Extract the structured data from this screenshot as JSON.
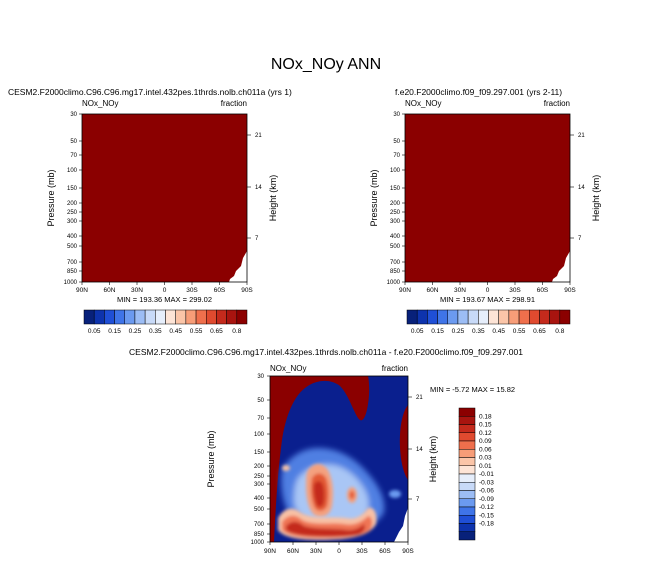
{
  "page": {
    "title": "NOx_NOy ANN"
  },
  "colors": {
    "dark_red": "#8b0000",
    "deep_blue": "#0a1f8e"
  },
  "chart_data": [
    {
      "type": "heatmap",
      "panel": "top-left",
      "title": "CESM2.F2000climo.C96.C96.mg17.intel.432pes.1thrds.nolb.ch011a (yrs 1)",
      "left_label": "NOx_NOy",
      "right_label": "fraction",
      "ylabel": "Pressure (mb)",
      "ylabel_right": "Height (km)",
      "x_ticks": [
        "90N",
        "60N",
        "30N",
        "0",
        "30S",
        "60S",
        "90S"
      ],
      "y_ticks": [
        "30",
        "50",
        "70",
        "100",
        "150",
        "200",
        "250",
        "300",
        "400",
        "500",
        "700",
        "850",
        "1000"
      ],
      "y_right_ticks": [
        "21",
        "14",
        "7"
      ],
      "stats": "MIN = 193.36   MAX = 299.02",
      "fill": "saturated high (above 0.8) everywhere except surface edge near 90S"
    },
    {
      "type": "heatmap",
      "panel": "top-right",
      "title": "f.e20.F2000climo.f09_f09.297.001 (yrs 2-11)",
      "left_label": "NOx_NOy",
      "right_label": "fraction",
      "ylabel": "Pressure (mb)",
      "ylabel_right": "Height (km)",
      "x_ticks": [
        "90N",
        "60N",
        "30N",
        "0",
        "30S",
        "60S",
        "90S"
      ],
      "y_ticks": [
        "30",
        "50",
        "70",
        "100",
        "150",
        "200",
        "250",
        "300",
        "400",
        "500",
        "700",
        "850",
        "1000"
      ],
      "y_right_ticks": [
        "21",
        "14",
        "7"
      ],
      "stats": "MIN = 193.67   MAX = 298.91",
      "fill": "saturated high (above 0.8) everywhere except surface edge near 90S"
    },
    {
      "type": "heatmap",
      "panel": "bottom",
      "title": "CESM2.F2000climo.C96.C96.mg17.intel.432pes.1thrds.nolb.ch011a - f.e20.F2000climo.f09_f09.297.001",
      "left_label": "NOx_NOy",
      "right_label": "fraction",
      "ylabel": "Pressure (mb)",
      "ylabel_right": "Height (km)",
      "x_ticks": [
        "90N",
        "60N",
        "30N",
        "0",
        "30S",
        "60S",
        "90S"
      ],
      "y_ticks": [
        "30",
        "50",
        "70",
        "100",
        "150",
        "200",
        "250",
        "300",
        "400",
        "500",
        "700",
        "850",
        "1000"
      ],
      "y_right_ticks": [
        "21",
        "14",
        "7"
      ],
      "stats": "MIN =  -5.72   MAX =  15.82"
    }
  ],
  "colorbar_top": {
    "labels": [
      "0.05",
      "0.15",
      "0.25",
      "0.35",
      "0.45",
      "0.55",
      "0.65",
      "0.8"
    ],
    "colors": [
      "#08217a",
      "#0d33ad",
      "#1f4fd6",
      "#3f74e8",
      "#6b9af0",
      "#9cbdf5",
      "#c8daf8",
      "#e6eefb",
      "#fde4d6",
      "#fbc5a8",
      "#f79d78",
      "#ef6f4c",
      "#e04a2f",
      "#c42a1c",
      "#a8140f",
      "#8b0000"
    ]
  },
  "colorbar_diff": {
    "labels": [
      "0.18",
      "0.15",
      "0.12",
      "0.09",
      "0.06",
      "0.03",
      "0.01",
      "-0.01",
      "-0.03",
      "-0.06",
      "-0.09",
      "-0.12",
      "-0.15",
      "-0.18"
    ],
    "colors": [
      "#8b0000",
      "#a8140f",
      "#c42a1c",
      "#e04a2f",
      "#ef6f4c",
      "#f79d78",
      "#fbc5a8",
      "#fde4d6",
      "#e6eefb",
      "#c8daf8",
      "#9cbdf5",
      "#6b9af0",
      "#3f74e8",
      "#1f4fd6",
      "#0d33ad",
      "#08217a"
    ]
  }
}
